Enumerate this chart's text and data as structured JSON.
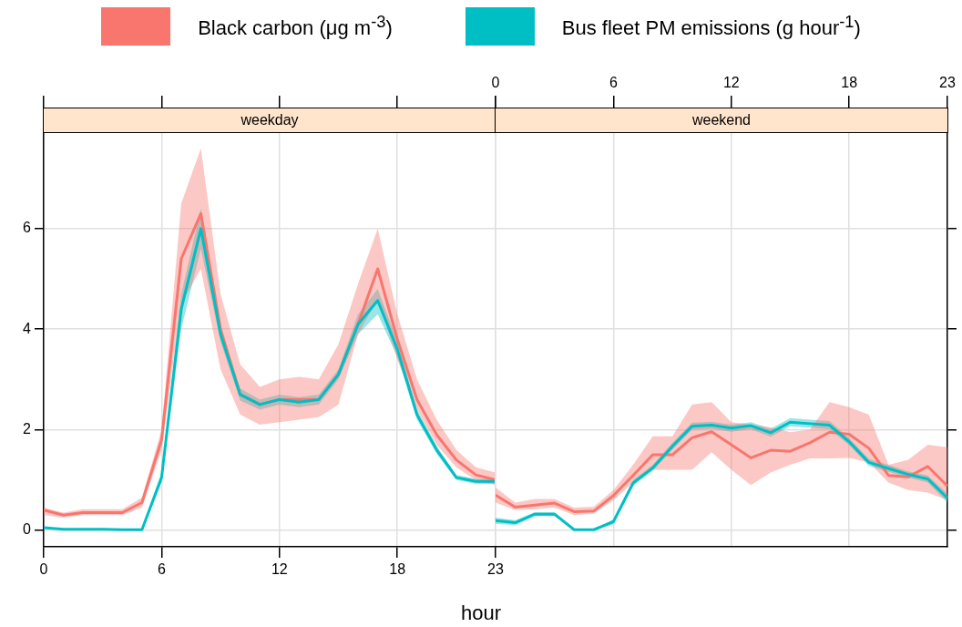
{
  "chart_data": [
    {
      "type": "line",
      "title": "weekday",
      "xlabel": "hour",
      "legend": "top",
      "grid": true,
      "xlim": [
        0,
        23
      ],
      "xticks": [
        0,
        6,
        12,
        18,
        23
      ],
      "ylim": [
        -0.33,
        7.92
      ],
      "yticks": [
        0,
        2,
        4,
        6
      ],
      "x": [
        0,
        1,
        2,
        3,
        4,
        5,
        6,
        7,
        8,
        9,
        10,
        11,
        12,
        13,
        14,
        15,
        16,
        17,
        18,
        19,
        20,
        21,
        22,
        23
      ],
      "series": [
        {
          "name": "Black carbon (μg m$^{-3}$)",
          "color": "#f8766d",
          "values": [
            0.4,
            0.3,
            0.35,
            0.35,
            0.35,
            0.55,
            1.8,
            5.4,
            6.3,
            4.0,
            2.7,
            2.5,
            2.6,
            2.6,
            2.6,
            3.1,
            4.1,
            5.2,
            3.8,
            2.6,
            1.9,
            1.4,
            1.1,
            1.0
          ],
          "lower": [
            0.3,
            0.25,
            0.3,
            0.3,
            0.3,
            0.45,
            1.6,
            4.5,
            5.2,
            3.2,
            2.3,
            2.1,
            2.15,
            2.2,
            2.25,
            2.5,
            3.9,
            4.6,
            3.4,
            2.4,
            1.7,
            1.25,
            1.0,
            0.9
          ],
          "upper": [
            0.45,
            0.35,
            0.42,
            0.42,
            0.42,
            0.65,
            2.0,
            6.5,
            7.6,
            4.7,
            3.3,
            2.85,
            3.0,
            3.05,
            3.0,
            3.7,
            4.9,
            6.0,
            4.3,
            3.0,
            2.2,
            1.6,
            1.25,
            1.15
          ]
        },
        {
          "name": "Bus fleet PM emissions (g hour$^{-1}$)",
          "color": "#00bfc4",
          "values": [
            0.05,
            0.02,
            0.02,
            0.02,
            0.01,
            0.01,
            1.05,
            4.4,
            6.0,
            3.9,
            2.7,
            2.5,
            2.6,
            2.55,
            2.6,
            3.1,
            4.1,
            4.57,
            3.6,
            2.3,
            1.6,
            1.05,
            0.97,
            0.97
          ],
          "lower": [
            0.03,
            0.01,
            0.01,
            0.01,
            0.0,
            0.0,
            0.95,
            4.0,
            5.6,
            3.75,
            2.58,
            2.4,
            2.5,
            2.45,
            2.5,
            3.0,
            3.9,
            4.3,
            3.45,
            2.2,
            1.52,
            1.0,
            0.92,
            0.92
          ],
          "upper": [
            0.07,
            0.03,
            0.03,
            0.03,
            0.02,
            0.02,
            1.15,
            4.7,
            6.4,
            4.05,
            2.82,
            2.6,
            2.7,
            2.65,
            2.7,
            3.2,
            4.3,
            4.8,
            3.75,
            2.4,
            1.68,
            1.1,
            1.02,
            1.02
          ]
        }
      ]
    },
    {
      "type": "line",
      "title": "weekend",
      "legend": false,
      "grid": true,
      "tick_labels": false,
      "xlim": [
        0,
        23
      ],
      "x2lim": [
        0,
        23
      ],
      "x2ticks": [
        0,
        6,
        12,
        18,
        23
      ],
      "ylim": [
        -0.33,
        7.92
      ],
      "yticks": [
        0,
        2,
        4,
        6
      ],
      "x": [
        0,
        1,
        2,
        3,
        4,
        5,
        6,
        7,
        8,
        9,
        10,
        11,
        12,
        13,
        14,
        15,
        16,
        17,
        18,
        19,
        20,
        21,
        22,
        23
      ],
      "series": [
        {
          "color": "#f8766d",
          "values": [
            0.7,
            0.46,
            0.5,
            0.54,
            0.37,
            0.38,
            0.69,
            1.09,
            1.5,
            1.5,
            1.84,
            1.96,
            1.7,
            1.44,
            1.59,
            1.57,
            1.74,
            1.95,
            1.91,
            1.63,
            1.09,
            1.06,
            1.27,
            0.88
          ],
          "lower": [
            0.55,
            0.4,
            0.42,
            0.45,
            0.3,
            0.33,
            0.6,
            0.95,
            1.2,
            1.2,
            1.2,
            1.55,
            1.2,
            0.9,
            1.15,
            1.3,
            1.43,
            1.43,
            1.44,
            1.35,
            0.95,
            0.8,
            0.75,
            0.6
          ],
          "upper": [
            0.85,
            0.55,
            0.62,
            0.62,
            0.45,
            0.47,
            0.8,
            1.3,
            1.87,
            1.87,
            2.5,
            2.55,
            2.15,
            2.1,
            2.05,
            1.95,
            2.0,
            2.55,
            2.45,
            2.3,
            1.3,
            1.4,
            1.7,
            1.65
          ]
        },
        {
          "color": "#00bfc4",
          "values": [
            0.19,
            0.15,
            0.32,
            0.32,
            0.01,
            0.01,
            0.17,
            0.94,
            1.24,
            1.67,
            2.07,
            2.09,
            2.03,
            2.08,
            1.94,
            2.15,
            2.12,
            2.09,
            1.76,
            1.35,
            1.23,
            1.11,
            1.02,
            0.64
          ],
          "lower": [
            0.13,
            0.1,
            0.28,
            0.28,
            0.0,
            0.0,
            0.12,
            0.88,
            1.18,
            1.6,
            2.0,
            2.02,
            1.96,
            2.01,
            1.86,
            2.07,
            2.04,
            2.01,
            1.69,
            1.28,
            1.16,
            1.05,
            0.95,
            0.55
          ],
          "upper": [
            0.25,
            0.2,
            0.36,
            0.36,
            0.02,
            0.02,
            0.22,
            1.0,
            1.3,
            1.74,
            2.14,
            2.16,
            2.1,
            2.15,
            2.02,
            2.23,
            2.2,
            2.17,
            1.83,
            1.42,
            1.3,
            1.17,
            1.09,
            0.73
          ]
        }
      ]
    }
  ]
}
